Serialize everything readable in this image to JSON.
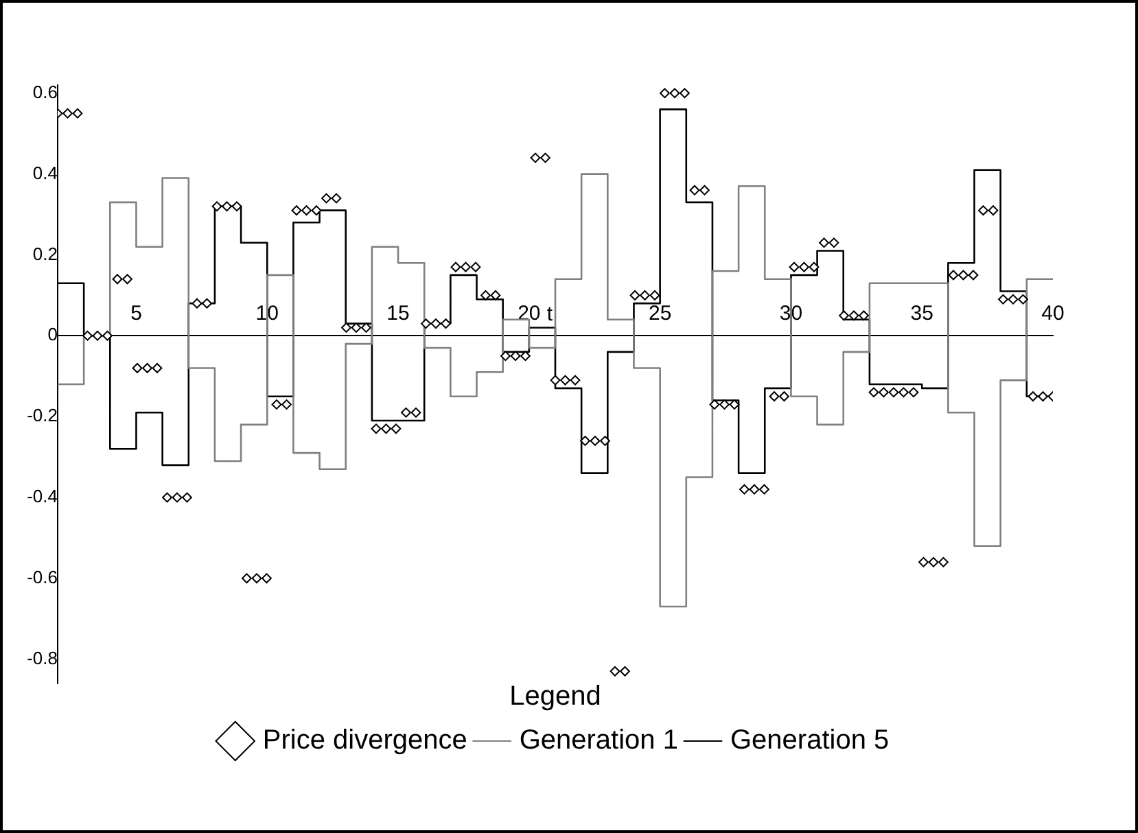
{
  "chart_data": {
    "type": "step",
    "xlabel": "t",
    "legend_title": "Legend",
    "legend": "bottom",
    "xlim": [
      2,
      40
    ],
    "ylim": [
      -0.86,
      0.62
    ],
    "xticks": [
      5,
      10,
      15,
      20,
      25,
      30,
      35,
      40
    ],
    "yticks": [
      -0.8,
      -0.6,
      -0.4,
      -0.2,
      0,
      0.2,
      0.4,
      0.6
    ],
    "series": [
      {
        "name": "Price divergence",
        "type": "scatter",
        "marker": "diamond",
        "color": "#000000",
        "x": [
          2.0,
          2.38,
          2.76,
          3.14,
          3.52,
          3.9,
          4.28,
          4.66,
          5.04,
          5.42,
          5.8,
          6.18,
          6.56,
          6.94,
          7.32,
          7.7,
          8.08,
          8.46,
          8.84,
          9.22,
          9.6,
          9.98,
          10.36,
          10.74,
          11.12,
          11.5,
          11.88,
          12.26,
          12.64,
          13.02,
          13.4,
          13.78,
          14.16,
          14.54,
          14.92,
          15.3,
          15.68,
          16.06,
          16.44,
          16.82,
          17.2,
          17.58,
          17.96,
          18.34,
          18.72,
          19.1,
          19.48,
          19.86,
          20.24,
          20.62,
          21.0,
          21.38,
          21.76,
          22.14,
          22.52,
          22.9,
          23.28,
          23.66,
          24.04,
          24.42,
          24.8,
          25.18,
          25.56,
          25.94,
          26.32,
          26.7,
          27.08,
          27.46,
          27.84,
          28.22,
          28.6,
          28.98,
          29.36,
          29.74,
          30.12,
          30.5,
          30.88,
          31.26,
          31.64,
          32.02,
          32.4,
          32.78,
          33.16,
          33.54,
          33.92,
          34.3,
          34.68,
          35.06,
          35.44,
          35.82,
          36.2,
          36.58,
          36.96,
          37.34,
          37.72,
          38.1,
          38.48,
          38.86,
          39.24,
          39.62,
          40.0
        ],
        "values": [
          0.55,
          0.55,
          0.55,
          0,
          0,
          0,
          0.14,
          0.14,
          -0.08,
          -0.08,
          -0.08,
          -0.4,
          -0.4,
          -0.4,
          0.08,
          0.08,
          0.32,
          0.32,
          0.32,
          -0.6,
          -0.6,
          -0.6,
          -0.17,
          -0.17,
          0.31,
          0.31,
          0.31,
          0.34,
          0.34,
          0.02,
          0.02,
          0.02,
          -0.23,
          -0.23,
          -0.23,
          -0.19,
          -0.19,
          0.03,
          0.03,
          0.03,
          0.17,
          0.17,
          0.17,
          0.1,
          0.1,
          -0.05,
          -0.05,
          -0.05,
          0.44,
          0.44,
          -0.11,
          -0.11,
          -0.11,
          -0.26,
          -0.26,
          -0.26,
          -0.83,
          -0.83,
          0.1,
          0.1,
          0.1,
          0.6,
          0.6,
          0.6,
          0.36,
          0.36,
          -0.17,
          -0.17,
          -0.17,
          -0.38,
          -0.38,
          -0.38,
          -0.15,
          -0.15,
          0.17,
          0.17,
          0.17,
          0.23,
          0.23,
          0.05,
          0.05,
          0.05,
          -0.14,
          -0.14,
          -0.14,
          -0.14,
          -0.14,
          -0.56,
          -0.56,
          -0.56,
          0.15,
          0.15,
          0.15,
          0.31,
          0.31,
          0.09,
          0.09,
          0.09,
          -0.15,
          -0.15,
          -0.15
        ]
      },
      {
        "name": "Generation 1",
        "marker": "none",
        "color": "#808080",
        "x": [
          2,
          3,
          4,
          5,
          6,
          7,
          8,
          9,
          10,
          11,
          12,
          13,
          14,
          15,
          16,
          17,
          18,
          19,
          20,
          21,
          22,
          23,
          24,
          25,
          26,
          27,
          28,
          29,
          30,
          31,
          32,
          33,
          34,
          35,
          36,
          37,
          38,
          39,
          40
        ],
        "values": [
          -0.12,
          0,
          0.33,
          0.22,
          0.39,
          -0.08,
          -0.31,
          -0.22,
          0.15,
          -0.29,
          -0.33,
          -0.02,
          0.22,
          0.18,
          -0.03,
          -0.15,
          -0.09,
          0.04,
          -0.03,
          0.14,
          0.4,
          0.04,
          -0.08,
          -0.67,
          -0.35,
          0.16,
          0.37,
          0.14,
          -0.15,
          -0.22,
          -0.04,
          0.13,
          0.13,
          0.13,
          -0.19,
          -0.52,
          -0.11,
          0.14,
          0.14
        ]
      },
      {
        "name": "Generation 5",
        "marker": "none",
        "color": "#000000",
        "x": [
          2,
          3,
          4,
          5,
          6,
          7,
          8,
          9,
          10,
          11,
          12,
          13,
          14,
          15,
          16,
          17,
          18,
          19,
          20,
          21,
          22,
          23,
          24,
          25,
          26,
          27,
          28,
          29,
          30,
          31,
          32,
          33,
          34,
          35,
          36,
          37,
          38,
          39,
          40
        ],
        "values": [
          0.13,
          0,
          -0.28,
          -0.19,
          -0.32,
          0.08,
          0.32,
          0.23,
          -0.15,
          0.28,
          0.31,
          0.03,
          -0.21,
          -0.21,
          0.03,
          0.15,
          0.09,
          -0.04,
          0.02,
          -0.13,
          -0.34,
          -0.04,
          0.08,
          0.56,
          0.33,
          -0.16,
          -0.34,
          -0.13,
          0.15,
          0.21,
          0.04,
          -0.12,
          -0.12,
          -0.13,
          0.18,
          0.41,
          0.11,
          -0.15,
          -0.15
        ]
      }
    ]
  }
}
